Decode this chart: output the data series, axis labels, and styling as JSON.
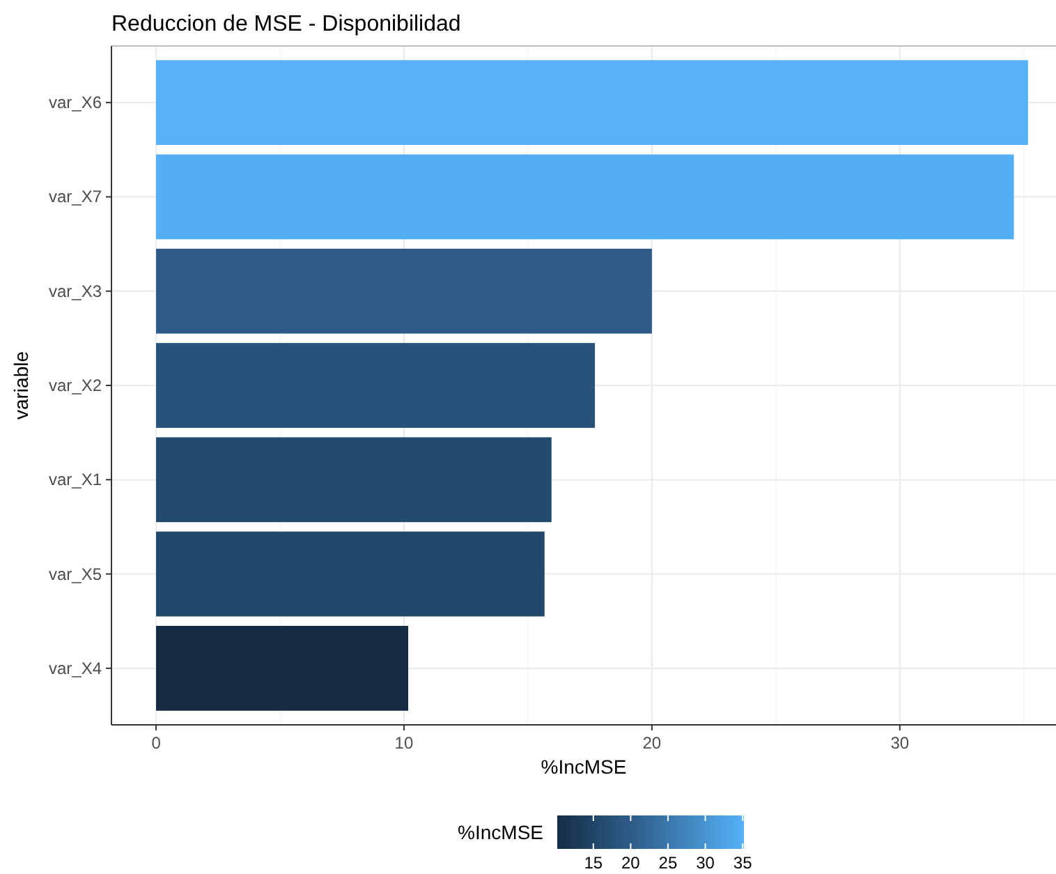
{
  "chart_data": {
    "type": "bar",
    "orientation": "horizontal",
    "title": "Reduccion de MSE - Disponibilidad",
    "xlabel": "%IncMSE",
    "ylabel": "variable",
    "categories": [
      "var_X6",
      "var_X7",
      "var_X3",
      "var_X2",
      "var_X1",
      "var_X5",
      "var_X4"
    ],
    "values": [
      35.17,
      34.6,
      20.0,
      17.7,
      15.95,
      15.67,
      10.17
    ],
    "colors": [
      "#56b1f7",
      "#54aef3",
      "#2d5b86",
      "#285279",
      "#234b6e",
      "#22496c",
      "#162c45"
    ],
    "xlim": [
      -1.8,
      36.3
    ],
    "xticks": [
      0,
      10,
      20,
      30
    ],
    "grid": true,
    "clabel": "%IncMSE",
    "clim": [
      10.17,
      35.17
    ],
    "cticks": [
      15,
      20,
      25,
      30,
      35
    ]
  }
}
